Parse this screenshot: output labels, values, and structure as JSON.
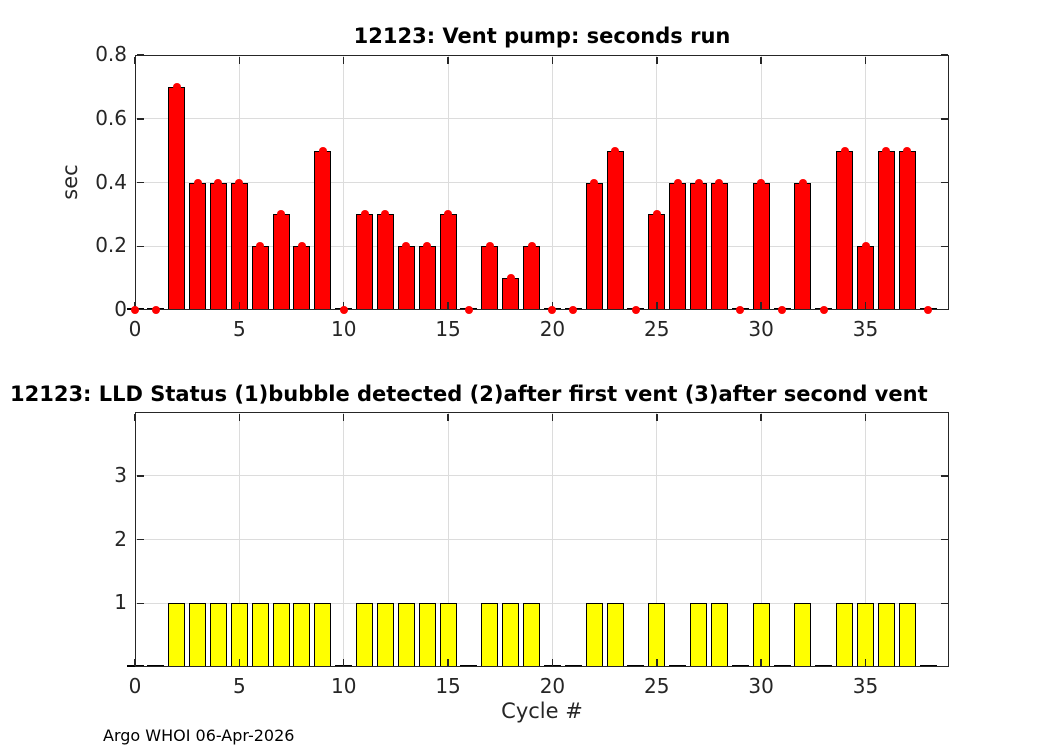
{
  "figure": {
    "background": "#ffffff",
    "footer_text": "Argo WHOI 06-Apr-2026"
  },
  "colors": {
    "grid": "#dcdcdc",
    "axis": "#262626",
    "tick_label": "#262626",
    "title_text": "#000000",
    "vent_bar_fill": "#ff0000",
    "vent_marker": "#ff0000",
    "lld_bar_fill": "#ffff00",
    "bar_edge": "#000000"
  },
  "chart_data": [
    {
      "type": "bar",
      "title": "12123: Vent pump: seconds run",
      "ylabel": "sec",
      "xlabel": "",
      "series_name": "vent pump seconds run",
      "x": [
        0,
        1,
        2,
        3,
        4,
        5,
        6,
        7,
        8,
        9,
        10,
        11,
        12,
        13,
        14,
        15,
        16,
        17,
        18,
        19,
        20,
        21,
        22,
        23,
        24,
        25,
        26,
        27,
        28,
        29,
        30,
        31,
        32,
        33,
        34,
        35,
        36,
        37,
        38
      ],
      "values": [
        0,
        0,
        0.7,
        0.4,
        0.4,
        0.4,
        0.2,
        0.3,
        0.2,
        0.5,
        0,
        0.3,
        0.3,
        0.2,
        0.2,
        0.3,
        0,
        0.2,
        0.1,
        0.2,
        0,
        0,
        0.4,
        0.5,
        0,
        0.3,
        0.4,
        0.4,
        0.4,
        0,
        0.4,
        0,
        0.4,
        0,
        0.5,
        0.2,
        0.5,
        0.5,
        0
      ],
      "xlim": [
        0,
        39
      ],
      "ylim": [
        0,
        0.8
      ],
      "xticks": [
        0,
        5,
        10,
        15,
        20,
        25,
        30,
        35
      ],
      "xtick_labels": [
        "0",
        "5",
        "10",
        "15",
        "20",
        "25",
        "30",
        "35"
      ],
      "yticks": [
        0,
        0.2,
        0.4,
        0.6,
        0.8
      ],
      "ytick_labels": [
        "0",
        "0.2",
        "0.4",
        "0.6",
        "0.8"
      ],
      "grid": true,
      "bar_color": "#ff0000",
      "edge_color": "#000000",
      "marker": "dot",
      "marker_color": "#ff0000",
      "legend": null
    },
    {
      "type": "bar",
      "title": "12123: LLD Status   (1)bubble detected   (2)after first vent  (3)after second vent",
      "ylabel": "",
      "xlabel": "Cycle #",
      "series_name": "LLD status",
      "x": [
        0,
        1,
        2,
        3,
        4,
        5,
        6,
        7,
        8,
        9,
        10,
        11,
        12,
        13,
        14,
        15,
        16,
        17,
        18,
        19,
        20,
        21,
        22,
        23,
        24,
        25,
        26,
        27,
        28,
        29,
        30,
        31,
        32,
        33,
        34,
        35,
        36,
        37,
        38
      ],
      "values": [
        0,
        0,
        1,
        1,
        1,
        1,
        1,
        1,
        1,
        1,
        0,
        1,
        1,
        1,
        1,
        1,
        0,
        1,
        1,
        1,
        0,
        0,
        1,
        1,
        0,
        1,
        0,
        1,
        1,
        0,
        1,
        0,
        1,
        0,
        1,
        1,
        1,
        1,
        0
      ],
      "xlim": [
        0,
        39
      ],
      "ylim": [
        0,
        4
      ],
      "xticks": [
        0,
        5,
        10,
        15,
        20,
        25,
        30,
        35
      ],
      "xtick_labels": [
        "0",
        "5",
        "10",
        "15",
        "20",
        "25",
        "30",
        "35"
      ],
      "yticks": [
        1,
        2,
        3
      ],
      "ytick_labels": [
        "1",
        "2",
        "3"
      ],
      "grid": true,
      "bar_color": "#ffff00",
      "edge_color": "#000000",
      "marker": null,
      "marker_color": null,
      "legend": null
    }
  ]
}
